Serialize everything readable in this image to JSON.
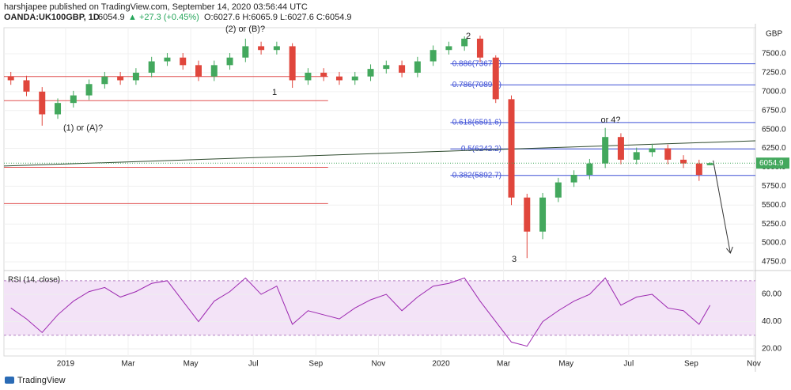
{
  "header": {
    "publisher": "harshjapee published on TradingView.com, September 14, 2020 03:56:44 UTC",
    "symbol": "OANDA:UK100GBP, 1D",
    "price": "6054.9",
    "change": "▲ +27.3 (+0.45%)",
    "ohlc": "O:6027.6 H:6065.9 L:6027.6 C:6054.9",
    "footer": "TradingView"
  },
  "chart_data": [
    {
      "type": "candlestick",
      "unit": "GBP",
      "x": [
        -1.75,
        -1.25,
        -0.75,
        -0.25,
        0.25,
        0.75,
        1.25,
        1.75,
        2.25,
        2.75,
        3.25,
        3.75,
        4.25,
        4.75,
        5.25,
        5.75,
        6.25,
        6.75,
        7.25,
        7.75,
        8.25,
        8.75,
        9.25,
        9.75,
        10.25,
        10.75,
        11.25,
        11.75,
        12.25,
        12.75,
        13.25,
        13.75,
        14.25,
        14.75,
        15.25,
        15.75,
        16.25,
        16.75,
        17.25,
        17.75,
        18.25,
        18.75,
        19.25,
        19.75,
        20.25,
        20.6
      ],
      "open": [
        7200,
        7150,
        7000,
        6700,
        6850,
        6950,
        7100,
        7200,
        7150,
        7250,
        7400,
        7450,
        7350,
        7200,
        7350,
        7450,
        7600,
        7550,
        7600,
        7150,
        7250,
        7200,
        7150,
        7200,
        7300,
        7350,
        7250,
        7400,
        7550,
        7600,
        7700,
        7450,
        6900,
        5600,
        5150,
        5600,
        5800,
        5900,
        6050,
        6400,
        6100,
        6200,
        6250,
        6100,
        6050,
        6027.6
      ],
      "high": [
        7260,
        7210,
        7060,
        6910,
        7010,
        7160,
        7260,
        7260,
        7310,
        7460,
        7510,
        7510,
        7410,
        7410,
        7510,
        7700,
        7660,
        7660,
        7640,
        7310,
        7310,
        7260,
        7260,
        7360,
        7410,
        7410,
        7460,
        7610,
        7660,
        7730,
        7740,
        7480,
        6950,
        5650,
        5660,
        5860,
        5960,
        6110,
        6520,
        6450,
        6260,
        6310,
        6300,
        6160,
        6100,
        6065.9
      ],
      "low": [
        7090,
        6940,
        6550,
        6640,
        6790,
        6890,
        7040,
        7090,
        7090,
        7190,
        7340,
        7290,
        7140,
        7140,
        7290,
        7390,
        7490,
        7490,
        7050,
        7090,
        7140,
        7090,
        7090,
        7140,
        7240,
        7190,
        7190,
        7340,
        7490,
        7540,
        7390,
        6850,
        5500,
        4800,
        5050,
        5540,
        5740,
        5840,
        5990,
        6040,
        6040,
        6140,
        6040,
        5990,
        5820,
        6027.6
      ],
      "close": [
        7150,
        7000,
        6700,
        6850,
        6950,
        7100,
        7200,
        7150,
        7250,
        7400,
        7450,
        7350,
        7200,
        7350,
        7450,
        7600,
        7550,
        7600,
        7150,
        7250,
        7200,
        7150,
        7200,
        7300,
        7350,
        7250,
        7400,
        7550,
        7600,
        7700,
        7450,
        6900,
        5600,
        5150,
        5600,
        5800,
        5900,
        6050,
        6400,
        6100,
        6200,
        6250,
        6100,
        6050,
        5900,
        6054.9
      ],
      "up_color": "#43a85d",
      "down_color": "#e0463c",
      "xlim": [
        -1.97,
        22.05
      ],
      "xticks": [
        {
          "value": 0,
          "label": "2019"
        },
        {
          "value": 2,
          "label": "Mar"
        },
        {
          "value": 4,
          "label": "May"
        },
        {
          "value": 6,
          "label": "Jul"
        },
        {
          "value": 8,
          "label": "Sep"
        },
        {
          "value": 10,
          "label": "Nov"
        },
        {
          "value": 12,
          "label": "2020"
        },
        {
          "value": 14,
          "label": "Mar"
        },
        {
          "value": 16,
          "label": "May"
        },
        {
          "value": 18,
          "label": "Jul"
        },
        {
          "value": 20,
          "label": "Sep"
        },
        {
          "value": 22,
          "label": "Nov"
        }
      ],
      "ylim": [
        4656,
        7845
      ],
      "yticks": [
        {
          "value": 4750,
          "label": "4750.0"
        },
        {
          "value": 5000,
          "label": "5000.0"
        },
        {
          "value": 5250,
          "label": "5250.0"
        },
        {
          "value": 5500,
          "label": "5500.0"
        },
        {
          "value": 5750,
          "label": "5750.0"
        },
        {
          "value": 6000,
          "label": "6000.0"
        },
        {
          "value": 6250,
          "label": "6250.0"
        },
        {
          "value": 6500,
          "label": "6500.0"
        },
        {
          "value": 6750,
          "label": "6750.0"
        },
        {
          "value": 7000,
          "label": "7000.0"
        },
        {
          "value": 7250,
          "label": "7250.0"
        },
        {
          "value": 7500,
          "label": "7500.0"
        }
      ],
      "grid": true,
      "fib_levels": {
        "color": "#3f51d6",
        "from": 12.3,
        "levels": [
          {
            "value": 7367.4,
            "label": "0.886(7367.4)"
          },
          {
            "value": 7089.1,
            "label": "0.786(7089.1)"
          },
          {
            "value": 6591.6,
            "label": "0.618(6591.6)"
          },
          {
            "value": 6242.2,
            "label": "0.5(6242.2)"
          },
          {
            "value": 5892.7,
            "label": "0.382(5892.7)"
          }
        ]
      },
      "levels": {
        "color": "#e05050",
        "to": 8.39,
        "values": [
          7200,
          6880,
          6000,
          5520
        ]
      },
      "trend_line": {
        "color": "#2e4a2e",
        "x": [
          -1.97,
          22.05
        ],
        "values": [
          6016,
          6350
        ]
      },
      "arrow": {
        "color": "#333",
        "x": [
          20.7,
          21.25
        ],
        "values": [
          6090,
          4866
        ]
      },
      "annotations": [
        "(1) or (A)?",
        "(2) or (B)?",
        "1",
        "2",
        "3",
        "or 4?"
      ]
    },
    {
      "type": "line",
      "title": "RSI (14, close)",
      "color": "#9c27b0",
      "values": [
        50,
        42,
        32,
        45,
        55,
        62,
        65,
        58,
        62,
        68,
        70,
        55,
        40,
        55,
        62,
        72,
        60,
        66,
        38,
        48,
        45,
        42,
        50,
        56,
        60,
        48,
        58,
        66,
        68,
        72,
        55,
        40,
        25,
        22,
        40,
        48,
        55,
        60,
        72,
        52,
        58,
        60,
        50,
        48,
        38,
        52
      ],
      "ylim": [
        14.8,
        75.7
      ],
      "yticks": [
        {
          "value": 20,
          "label": "20.00"
        },
        {
          "value": 40,
          "label": "40.00"
        },
        {
          "value": 60,
          "label": "60.00"
        }
      ],
      "band": [
        30,
        70
      ],
      "band_color": "#f3e3f7"
    }
  ]
}
